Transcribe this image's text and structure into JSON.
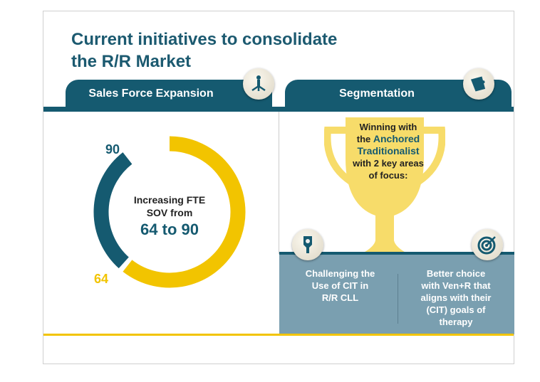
{
  "title": "Current initiatives to consolidate\nthe R/R Market",
  "tabs": [
    {
      "label": "Sales Force Expansion",
      "icon": "org-chart-icon"
    },
    {
      "label": "Segmentation",
      "icon": "puzzle-icon"
    }
  ],
  "donut": {
    "start_label": "64",
    "end_label": "90",
    "text_line1": "Increasing FTE",
    "text_line2": "SOV from",
    "text_big": "64 to 90",
    "colors": {
      "dark": "#155a70",
      "yellow": "#f2c400"
    }
  },
  "trophy": {
    "line1": "Winning with",
    "line2": "the",
    "highlight": "Anchored Traditionalist",
    "line3": "with 2 key areas of focus:"
  },
  "focus": [
    {
      "text": "Challenging the\nUse of CIT in\nR/R CLL",
      "icon": "hand-icon"
    },
    {
      "text": "Better choice\nwith Ven+R that\naligns with their\n(CIT) goals of\ntherapy",
      "icon": "target-icon"
    }
  ]
}
